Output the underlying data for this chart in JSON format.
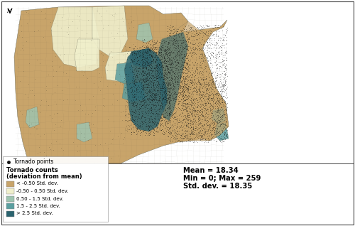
{
  "background_color": "#ffffff",
  "map_outer_bg": "#ffffff",
  "legend_dot_label": "Tornado points",
  "legend_title_line1": "Tornado counts",
  "legend_title_line2": "(deviation from mean)",
  "legend_items": [
    {
      "label": "< -0.50 Std. dev.",
      "color": "#c8a46a"
    },
    {
      "label": "-0.50 - 0.50 Std. dev.",
      "color": "#f0efcc"
    },
    {
      "label": "0.50 - 1.5 Std. dev.",
      "color": "#9ec4b0"
    },
    {
      "label": "1.5 - 2.5 Std. dev.",
      "color": "#5a9fa0"
    },
    {
      "label": "> 2.5 Std. dev.",
      "color": "#2a636e"
    }
  ],
  "stats_lines": [
    "Mean = 18.34",
    "Min = 0; Max = 259",
    "Std. dev. = 18.35"
  ],
  "dot_color": "#111111",
  "county_line_color": "#666655",
  "border_color": "#444444",
  "water_color": "#ffffff",
  "figsize": [
    5.0,
    3.18
  ],
  "dpi": 100
}
